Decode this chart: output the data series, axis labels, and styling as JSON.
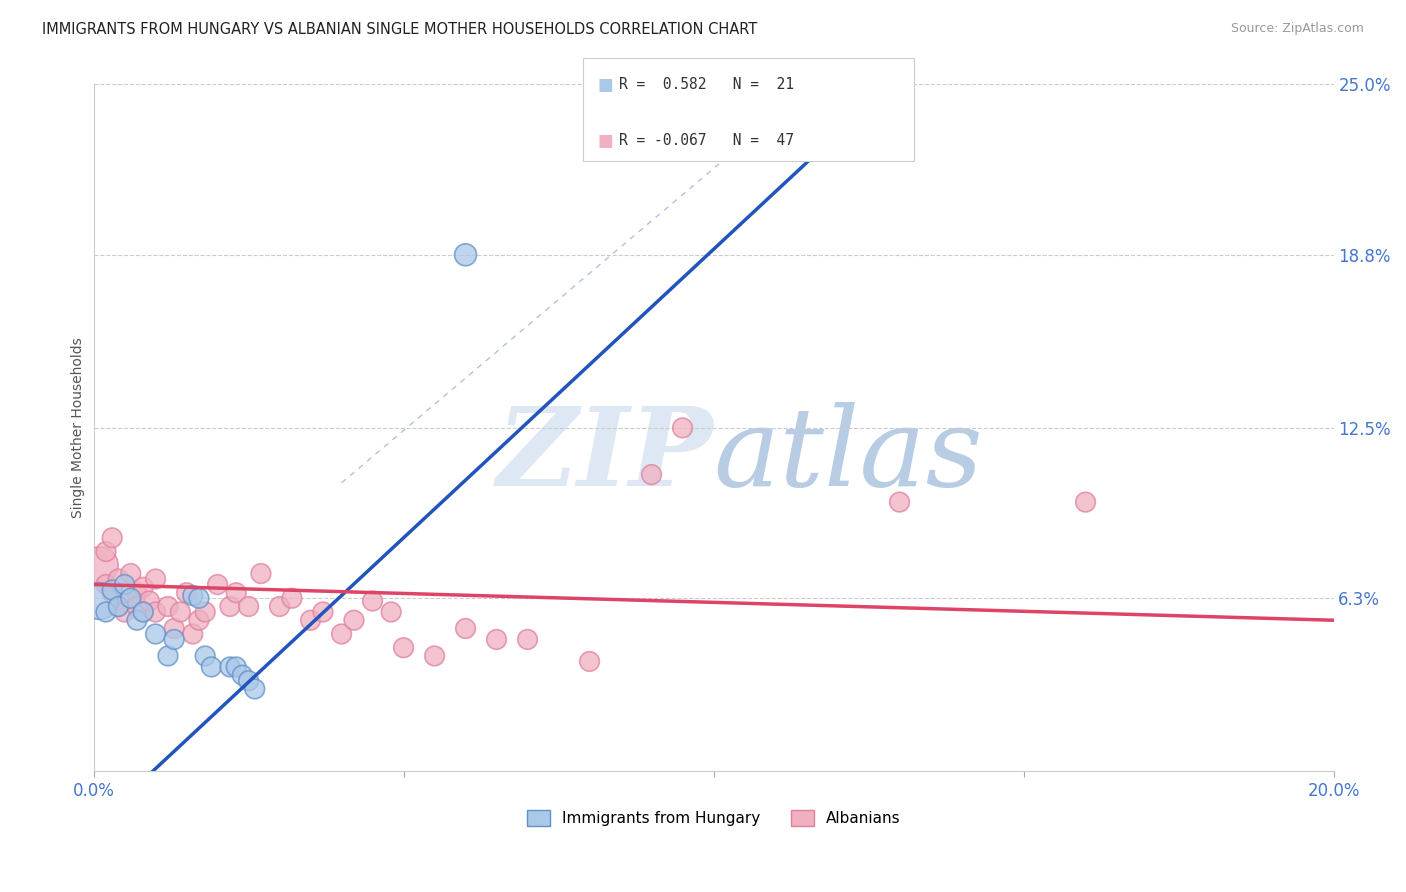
{
  "title": "IMMIGRANTS FROM HUNGARY VS ALBANIAN SINGLE MOTHER HOUSEHOLDS CORRELATION CHART",
  "source": "Source: ZipAtlas.com",
  "ylabel": "Single Mother Households",
  "xlim": [
    0.0,
    0.2
  ],
  "ylim": [
    0.0,
    0.25
  ],
  "xticks": [
    0.0,
    0.05,
    0.1,
    0.15,
    0.2
  ],
  "xtick_labels": [
    "0.0%",
    "",
    "",
    "",
    "20.0%"
  ],
  "ytick_labels_right": [
    "6.3%",
    "12.5%",
    "18.8%",
    "25.0%"
  ],
  "ytick_values_right": [
    0.063,
    0.125,
    0.188,
    0.25
  ],
  "blue_R": 0.582,
  "blue_N": 21,
  "pink_R": -0.067,
  "pink_N": 47,
  "blue_fill": "#aac8e8",
  "pink_fill": "#f0b0c0",
  "blue_edge": "#6090c8",
  "pink_edge": "#e080a0",
  "blue_line_color": "#2255bb",
  "pink_line_color": "#dd4466",
  "watermark_color": "#dde8f4",
  "blue_dots": [
    [
      0.001,
      0.062
    ],
    [
      0.002,
      0.058
    ],
    [
      0.003,
      0.066
    ],
    [
      0.004,
      0.06
    ],
    [
      0.005,
      0.068
    ],
    [
      0.006,
      0.063
    ],
    [
      0.007,
      0.055
    ],
    [
      0.008,
      0.058
    ],
    [
      0.01,
      0.05
    ],
    [
      0.012,
      0.042
    ],
    [
      0.013,
      0.048
    ],
    [
      0.016,
      0.064
    ],
    [
      0.017,
      0.063
    ],
    [
      0.018,
      0.042
    ],
    [
      0.019,
      0.038
    ],
    [
      0.022,
      0.038
    ],
    [
      0.023,
      0.038
    ],
    [
      0.024,
      0.035
    ],
    [
      0.025,
      0.033
    ],
    [
      0.026,
      0.03
    ],
    [
      0.06,
      0.188
    ]
  ],
  "blue_dot_sizes": [
    700,
    200,
    200,
    200,
    200,
    200,
    200,
    200,
    200,
    200,
    200,
    200,
    200,
    200,
    200,
    200,
    200,
    200,
    200,
    200,
    250
  ],
  "pink_dots": [
    [
      0.001,
      0.075
    ],
    [
      0.002,
      0.068
    ],
    [
      0.002,
      0.08
    ],
    [
      0.003,
      0.065
    ],
    [
      0.003,
      0.085
    ],
    [
      0.004,
      0.06
    ],
    [
      0.004,
      0.07
    ],
    [
      0.005,
      0.062
    ],
    [
      0.005,
      0.058
    ],
    [
      0.006,
      0.072
    ],
    [
      0.007,
      0.065
    ],
    [
      0.007,
      0.06
    ],
    [
      0.008,
      0.067
    ],
    [
      0.008,
      0.058
    ],
    [
      0.009,
      0.062
    ],
    [
      0.01,
      0.058
    ],
    [
      0.01,
      0.07
    ],
    [
      0.012,
      0.06
    ],
    [
      0.013,
      0.052
    ],
    [
      0.014,
      0.058
    ],
    [
      0.015,
      0.065
    ],
    [
      0.016,
      0.05
    ],
    [
      0.017,
      0.055
    ],
    [
      0.018,
      0.058
    ],
    [
      0.02,
      0.068
    ],
    [
      0.022,
      0.06
    ],
    [
      0.023,
      0.065
    ],
    [
      0.025,
      0.06
    ],
    [
      0.027,
      0.072
    ],
    [
      0.03,
      0.06
    ],
    [
      0.032,
      0.063
    ],
    [
      0.035,
      0.055
    ],
    [
      0.037,
      0.058
    ],
    [
      0.04,
      0.05
    ],
    [
      0.042,
      0.055
    ],
    [
      0.045,
      0.062
    ],
    [
      0.048,
      0.058
    ],
    [
      0.05,
      0.045
    ],
    [
      0.055,
      0.042
    ],
    [
      0.06,
      0.052
    ],
    [
      0.065,
      0.048
    ],
    [
      0.07,
      0.048
    ],
    [
      0.08,
      0.04
    ],
    [
      0.09,
      0.108
    ],
    [
      0.095,
      0.125
    ],
    [
      0.13,
      0.098
    ],
    [
      0.16,
      0.098
    ]
  ],
  "pink_dot_sizes": [
    700,
    200,
    200,
    200,
    200,
    200,
    200,
    200,
    200,
    200,
    200,
    200,
    200,
    200,
    200,
    200,
    200,
    200,
    200,
    200,
    200,
    200,
    200,
    200,
    200,
    200,
    200,
    200,
    200,
    200,
    200,
    200,
    200,
    200,
    200,
    200,
    200,
    200,
    200,
    200,
    200,
    200,
    200,
    200,
    200,
    200,
    200
  ],
  "blue_line_x": [
    0.0,
    0.2
  ],
  "blue_line_y": [
    -0.02,
    0.4
  ],
  "pink_line_x": [
    0.0,
    0.2
  ],
  "pink_line_y": [
    0.068,
    0.055
  ],
  "diag_line_x": [
    0.04,
    0.115
  ],
  "diag_line_y": [
    0.105,
    0.248
  ],
  "legend_R_blue": "R =  0.582   N =  21",
  "legend_R_pink": "R = -0.067   N =  47"
}
